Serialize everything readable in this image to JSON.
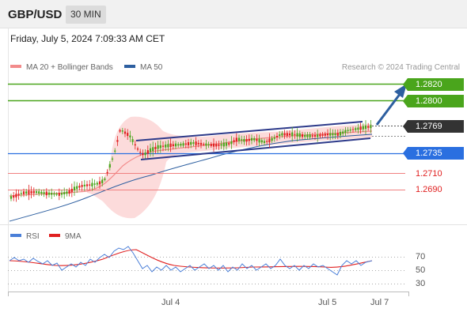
{
  "header": {
    "symbol": "GBP/USD",
    "interval": "30 MIN"
  },
  "timestamp": "Friday, July 5, 2024 7:09:33 AM CET",
  "legend": {
    "ma20_label": "MA 20 + Bollinger Bands",
    "ma20_color": "#f28b8b",
    "ma50_label": "MA 50",
    "ma50_color": "#2d5fa0"
  },
  "credit": "Research © 2024 Trading Central",
  "price_levels": {
    "resistance_2": "1.2820",
    "resistance_1": "1.2800",
    "last_price": "1.2769",
    "pivot": "1.2735",
    "support_1": "1.2710",
    "support_2": "1.2690"
  },
  "rsi_legend": {
    "rsi_label": "RSI",
    "rsi_color": "#4a7fd8",
    "ma_label": "9MA",
    "ma_color": "#e02020"
  },
  "rsi_levels": [
    "70",
    "50",
    "30"
  ],
  "x_axis": {
    "labels": [
      "Jul 4",
      "Jul 5",
      "Jul 7"
    ]
  },
  "colors": {
    "resistance": "#4aa51c",
    "pivot": "#2a6fe0",
    "support": "#e02020",
    "last_price": "#333333",
    "channel": "#2d3a8a",
    "arrow": "#2d5fa0",
    "bull_candle": "#4aa51c",
    "bear_candle": "#e02020"
  }
}
